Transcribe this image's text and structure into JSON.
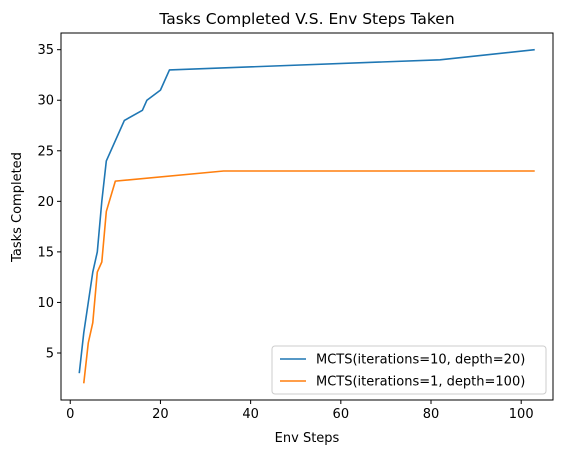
{
  "chart_data": {
    "type": "line",
    "title": "Tasks Completed V.S. Env Steps Taken",
    "xlabel": "Env Steps",
    "ylabel": "Tasks Completed",
    "xlim": [
      -2.05,
      107.05
    ],
    "ylim": [
      0.35,
      36.65
    ],
    "xticks": [
      0,
      20,
      40,
      60,
      80,
      100
    ],
    "yticks": [
      5,
      10,
      15,
      20,
      25,
      30,
      35
    ],
    "grid": false,
    "legend_position": "lower right",
    "series": [
      {
        "name": "MCTS(iterations=10, depth=20)",
        "color": "#1f77b4",
        "x": [
          2,
          3,
          4,
          5,
          6,
          7,
          8,
          12,
          16,
          17,
          20,
          22,
          82,
          103
        ],
        "y": [
          3,
          7,
          10,
          13,
          15,
          20,
          24,
          28,
          29,
          30,
          31,
          33,
          34,
          35
        ]
      },
      {
        "name": "MCTS(iterations=1, depth=100)",
        "color": "#ff7f0e",
        "x": [
          3,
          4,
          5,
          6,
          7,
          8,
          10,
          34,
          103
        ],
        "y": [
          2,
          6,
          8,
          13,
          14,
          19,
          22,
          23,
          23
        ]
      }
    ]
  }
}
